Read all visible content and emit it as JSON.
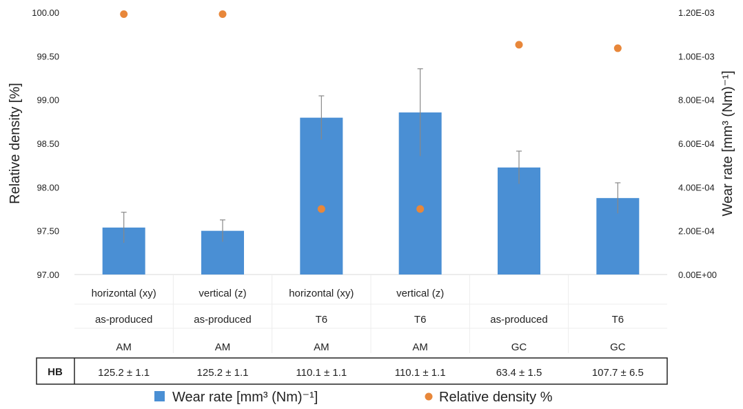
{
  "chart_data": {
    "type": "bar",
    "categories": [
      {
        "orientation": "horizontal (xy)",
        "treatment": "as-produced",
        "process": "AM",
        "hb": "125.2 ± 1.1"
      },
      {
        "orientation": "vertical (z)",
        "treatment": "as-produced",
        "process": "AM",
        "hb": "125.2 ± 1.1"
      },
      {
        "orientation": "horizontal (xy)",
        "treatment": "T6",
        "process": "AM",
        "hb": "110.1 ± 1.1"
      },
      {
        "orientation": "vertical (z)",
        "treatment": "T6",
        "process": "AM",
        "hb": "110.1 ± 1.1"
      },
      {
        "orientation": "",
        "treatment": "as-produced",
        "process": "GC",
        "hb": "63.4 ± 1.5"
      },
      {
        "orientation": "",
        "treatment": "T6",
        "process": "GC",
        "hb": "107.7 ± 6.5"
      }
    ],
    "hb_label": "HB",
    "series": [
      {
        "name": "Wear rate [mm³ (Nm)⁻¹]",
        "kind": "bar",
        "axis": "right",
        "color": "#4a8fd4",
        "values": [
          0.000215,
          0.0002,
          0.000718,
          0.000742,
          0.00049,
          0.00035
        ],
        "error": [
          7e-05,
          5e-05,
          0.0001,
          0.0002,
          7.5e-05,
          7e-05
        ]
      },
      {
        "name": "Relative density %",
        "kind": "scatter",
        "axis": "left",
        "color": "#e8873a",
        "values": [
          99.98,
          99.98,
          97.75,
          97.75,
          99.63,
          99.59
        ]
      }
    ],
    "ylabel_left": "Relative density [%]",
    "ylabel_right": "Wear rate [mm³ (Nm)⁻¹]",
    "ylim_left": [
      97.0,
      100.0
    ],
    "ylim_right": [
      0,
      0.0012
    ],
    "yticks_left": [
      "97.00",
      "97.50",
      "98.00",
      "98.50",
      "99.00",
      "99.50",
      "100.00"
    ],
    "yticks_right": [
      "0.00E+00",
      "2.00E-04",
      "4.00E-04",
      "6.00E-04",
      "8.00E-04",
      "1.00E-03",
      "1.20E-03"
    ],
    "legend_position": "bottom",
    "grid": false
  }
}
